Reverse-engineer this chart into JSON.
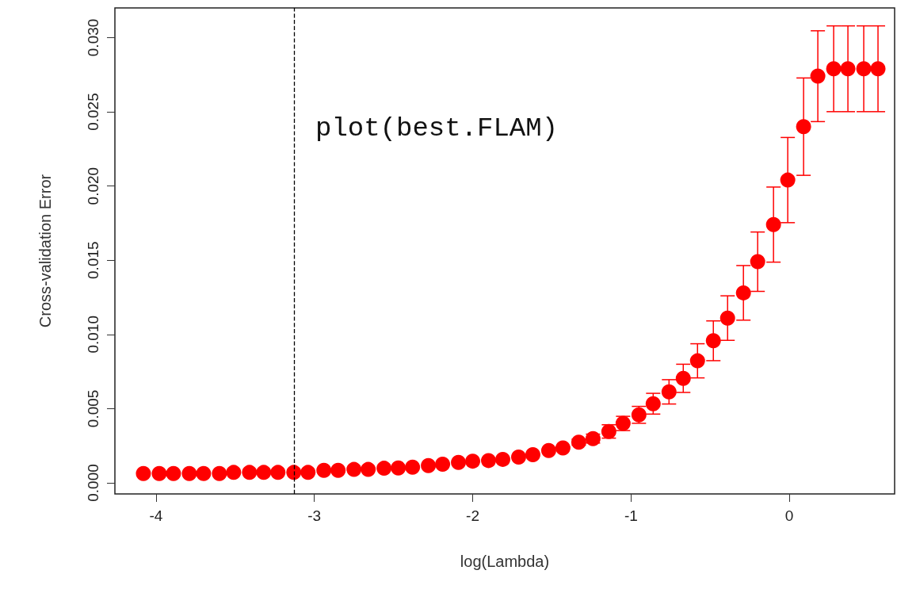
{
  "chart_data": {
    "type": "scatter",
    "xlabel": "log(Lambda)",
    "ylabel": "Cross-validation Error",
    "annotations": [
      "plot(best.FLAM)"
    ],
    "x": [
      -4.08,
      -3.98,
      -3.89,
      -3.79,
      -3.7,
      -3.6,
      -3.51,
      -3.41,
      -3.32,
      -3.23,
      -3.13,
      -3.04,
      -2.94,
      -2.85,
      -2.75,
      -2.66,
      -2.56,
      -2.47,
      -2.38,
      -2.28,
      -2.19,
      -2.09,
      -2.0,
      -1.9,
      -1.81,
      -1.71,
      -1.62,
      -1.52,
      -1.43,
      -1.33,
      -1.24,
      -1.14,
      -1.05,
      -0.95,
      -0.86,
      -0.76,
      -0.67,
      -0.58,
      -0.48,
      -0.39,
      -0.29,
      -0.2,
      -0.1,
      -0.01,
      0.09,
      0.18,
      0.28,
      0.37,
      0.47,
      0.56
    ],
    "series": [
      {
        "color": "#ff0000",
        "values": [
          0.00063,
          0.00063,
          0.00063,
          0.00063,
          0.00063,
          0.00063,
          0.0007,
          0.0007,
          0.0007,
          0.0007,
          0.0007,
          0.0007,
          0.00084,
          0.00084,
          0.0009,
          0.0009,
          0.00098,
          0.001,
          0.00105,
          0.00116,
          0.00125,
          0.00137,
          0.00146,
          0.0015,
          0.00158,
          0.00173,
          0.0019,
          0.00218,
          0.00235,
          0.00274,
          0.00298,
          0.00346,
          0.004,
          0.00458,
          0.00533,
          0.00613,
          0.00704,
          0.00822,
          0.00957,
          0.0111,
          0.0128,
          0.0149,
          0.0174,
          0.0204,
          0.024,
          0.0274,
          0.0279,
          0.0279,
          0.0279,
          0.0279
        ],
        "errors": [
          null,
          null,
          null,
          null,
          null,
          null,
          null,
          null,
          null,
          null,
          null,
          null,
          null,
          null,
          null,
          null,
          null,
          null,
          null,
          null,
          null,
          null,
          null,
          null,
          null,
          null,
          null,
          null,
          null,
          0.0002,
          0.0003,
          0.00045,
          0.00048,
          0.00057,
          0.0007,
          0.00082,
          0.00095,
          0.00115,
          0.00134,
          0.0015,
          0.00184,
          0.002,
          0.00253,
          0.00287,
          0.00328,
          0.00306,
          0.00289,
          0.00289,
          0.00289,
          0.00289
        ]
      }
    ],
    "xlim": [
      -4.26,
      0.665
    ],
    "xticks": [
      -4,
      -3,
      -2,
      -1,
      0
    ],
    "ylim": [
      -0.00075,
      0.032
    ],
    "yticks": [
      {
        "value": 0,
        "label": "0.000"
      },
      {
        "value": 0.005,
        "label": "0.005"
      },
      {
        "value": 0.01,
        "label": "0.010"
      },
      {
        "value": 0.015,
        "label": "0.015"
      },
      {
        "value": 0.02,
        "label": "0.020"
      },
      {
        "value": 0.025,
        "label": "0.025"
      },
      {
        "value": 0.03,
        "label": "0.030"
      }
    ],
    "ref_lines": [
      {
        "axis": "x",
        "value": -3.13,
        "color": "#000000",
        "line_style": "dashed"
      }
    ],
    "marker": "circle",
    "grid": false
  }
}
